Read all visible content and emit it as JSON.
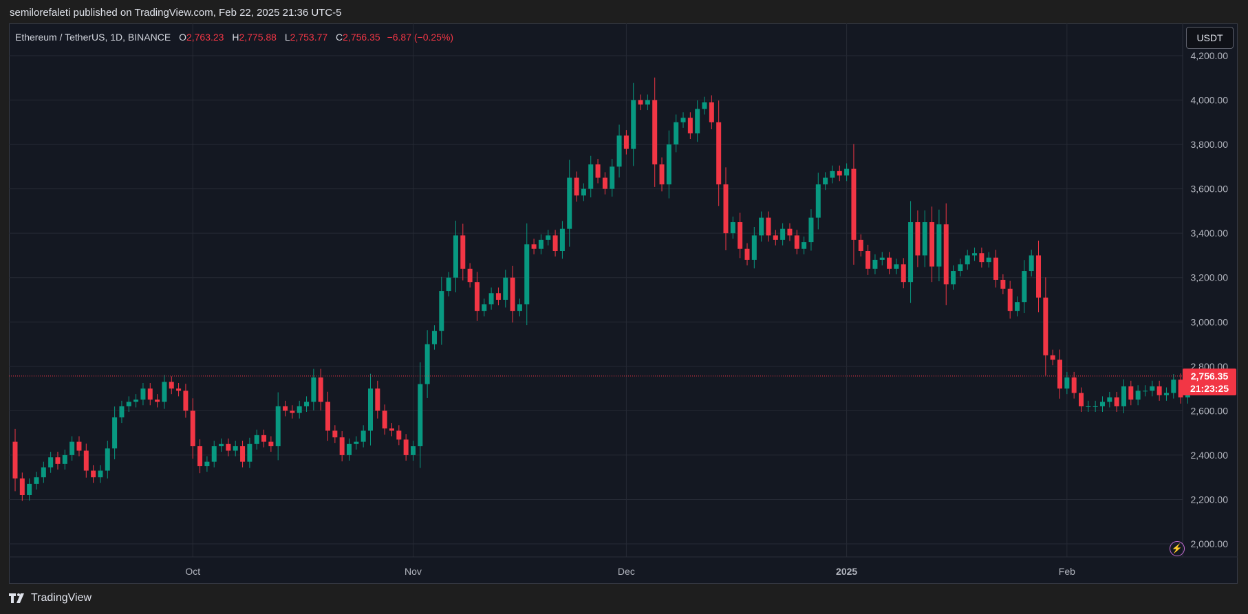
{
  "header": {
    "published": "semilorefaleti published on TradingView.com, Feb 22, 2025 21:36 UTC-5"
  },
  "legend": {
    "symbol": "Ethereum / TetherUS, 1D, BINANCE",
    "open_label": "O",
    "open": "2,763.23",
    "high_label": "H",
    "high": "2,775.88",
    "low_label": "L",
    "low": "2,753.77",
    "close_label": "C",
    "close": "2,756.35",
    "change": "−6.87 (−0.25%)"
  },
  "currency_button": "USDT",
  "price_tag": {
    "price": "2,756.35",
    "countdown": "21:23:25"
  },
  "footer": {
    "brand": "TradingView"
  },
  "colors": {
    "up": "#089981",
    "down": "#f23645",
    "background": "#141822",
    "grid": "#262a35",
    "axis_text": "#b2b5be"
  },
  "icons": {
    "alert": "lightning-icon",
    "logo": "tradingview-logo-icon"
  },
  "chart_data": {
    "type": "candlestick",
    "title": "Ethereum / TetherUS, 1D, BINANCE",
    "ylim": [
      1900,
      4300
    ],
    "y_ticks": [
      "4,200.00",
      "4,000.00",
      "3,800.00",
      "3,600.00",
      "3,400.00",
      "3,200.00",
      "3,000.00",
      "2,800.00",
      "2,600.00",
      "2,400.00",
      "2,200.00",
      "2,000.00"
    ],
    "x_ticks": [
      {
        "label": "Oct",
        "date": "2024-10-01"
      },
      {
        "label": "Nov",
        "date": "2024-11-01"
      },
      {
        "label": "Dec",
        "date": "2024-12-01"
      },
      {
        "label": "2025",
        "date": "2025-01-01"
      },
      {
        "label": "Feb",
        "date": "2025-02-01"
      }
    ],
    "last_price": 2756.35,
    "grid": true,
    "start_date": "2024-09-06",
    "close": [
      2295,
      2220,
      2270,
      2300,
      2345,
      2390,
      2360,
      2400,
      2460,
      2420,
      2330,
      2300,
      2330,
      2430,
      2570,
      2620,
      2640,
      2650,
      2700,
      2650,
      2640,
      2730,
      2700,
      2690,
      2600,
      2440,
      2350,
      2370,
      2440,
      2450,
      2420,
      2440,
      2370,
      2450,
      2490,
      2460,
      2440,
      2620,
      2600,
      2590,
      2620,
      2640,
      2750,
      2640,
      2510,
      2480,
      2400,
      2450,
      2460,
      2510,
      2700,
      2600,
      2520,
      2510,
      2470,
      2400,
      2440,
      2720,
      2900,
      2960,
      3140,
      3200,
      3390,
      3240,
      3180,
      3050,
      3080,
      3130,
      3100,
      3200,
      3050,
      3080,
      3350,
      3330,
      3370,
      3390,
      3320,
      3420,
      3650,
      3570,
      3600,
      3710,
      3650,
      3600,
      3700,
      3840,
      3780,
      4000,
      3980,
      4000,
      3710,
      3620,
      3800,
      3900,
      3920,
      3850,
      3960,
      3990,
      3900,
      3620,
      3400,
      3450,
      3330,
      3280,
      3390,
      3470,
      3390,
      3370,
      3420,
      3390,
      3330,
      3360,
      3470,
      3620,
      3650,
      3680,
      3660,
      3690,
      3370,
      3320,
      3240,
      3280,
      3290,
      3240,
      3260,
      3180,
      3450,
      3300,
      3450,
      3250,
      3440,
      3170,
      3230,
      3260,
      3300,
      3310,
      3270,
      3290,
      3190,
      3150,
      3050,
      3090,
      3230,
      3300,
      3110,
      2850,
      2830,
      2700,
      2750,
      2680,
      2620,
      2620,
      2620,
      2640,
      2660,
      2620,
      2710,
      2650,
      2690,
      2690,
      2710,
      2670,
      2680,
      2740,
      2660,
      2740,
      2700,
      2740,
      2756
    ]
  }
}
